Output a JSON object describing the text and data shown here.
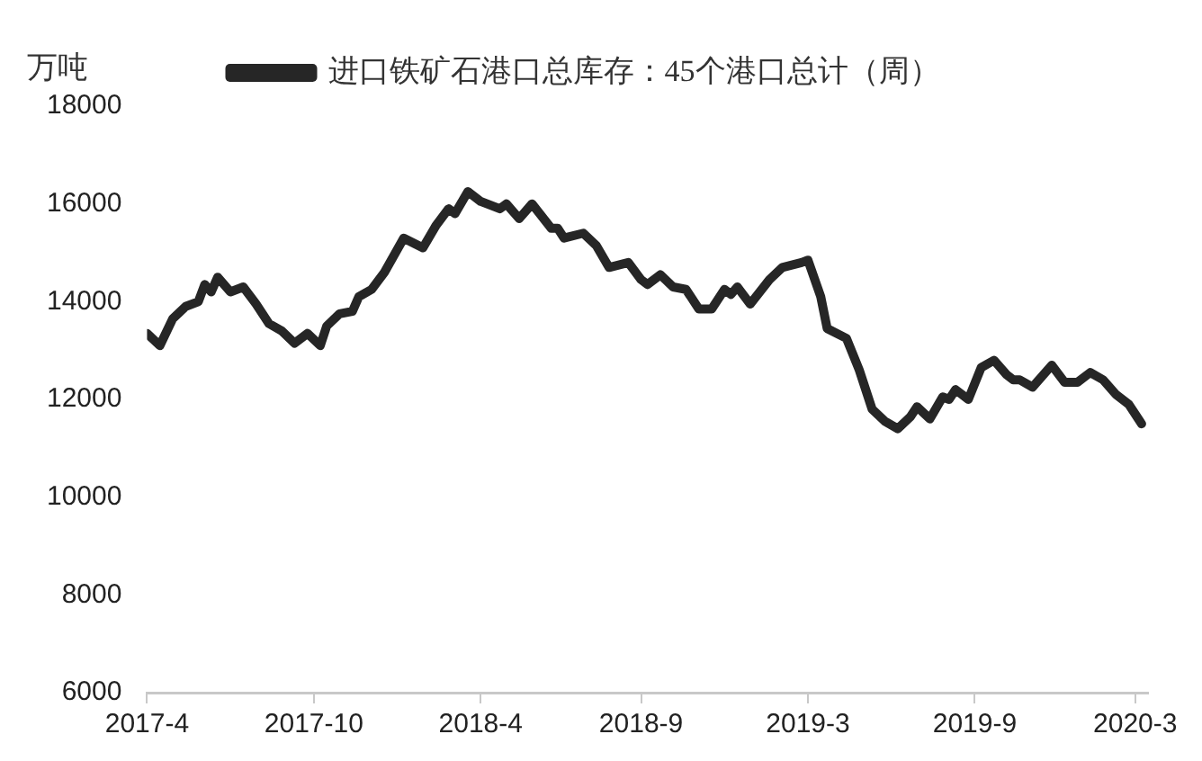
{
  "chart_data": {
    "type": "line",
    "ylabel": "万吨",
    "legend": "top",
    "marker": "none",
    "line_style": "solid",
    "grid": false,
    "x": [
      "2017-04-07",
      "2017-04-21",
      "2017-05-05",
      "2017-05-19",
      "2017-06-02",
      "2017-06-09",
      "2017-06-16",
      "2017-06-23",
      "2017-07-07",
      "2017-07-21",
      "2017-08-04",
      "2017-08-18",
      "2017-09-01",
      "2017-09-15",
      "2017-09-29",
      "2017-10-13",
      "2017-10-20",
      "2017-11-03",
      "2017-11-17",
      "2017-11-24",
      "2017-12-08",
      "2017-12-22",
      "2018-01-12",
      "2018-02-02",
      "2018-02-16",
      "2018-03-02",
      "2018-03-09",
      "2018-03-23",
      "2018-04-06",
      "2018-04-27",
      "2018-05-04",
      "2018-05-18",
      "2018-06-01",
      "2018-06-22",
      "2018-06-29",
      "2018-07-06",
      "2018-07-27",
      "2018-08-10",
      "2018-08-24",
      "2018-09-14",
      "2018-09-28",
      "2018-10-05",
      "2018-10-19",
      "2018-11-02",
      "2018-11-16",
      "2018-11-30",
      "2018-12-14",
      "2018-12-28",
      "2019-01-04",
      "2019-01-11",
      "2019-01-25",
      "2019-02-15",
      "2019-03-01",
      "2019-03-22",
      "2019-03-29",
      "2019-04-12",
      "2019-04-19",
      "2019-05-10",
      "2019-05-24",
      "2019-06-07",
      "2019-06-21",
      "2019-07-05",
      "2019-07-19",
      "2019-07-26",
      "2019-08-09",
      "2019-08-23",
      "2019-08-30",
      "2019-09-06",
      "2019-09-20",
      "2019-10-04",
      "2019-10-18",
      "2019-11-01",
      "2019-11-08",
      "2019-11-15",
      "2019-11-29",
      "2019-12-20",
      "2020-01-03",
      "2020-01-17",
      "2020-01-31",
      "2020-02-14",
      "2020-02-28",
      "2020-03-13",
      "2020-03-27"
    ],
    "series": [
      {
        "name": "进口铁矿石港口总库存：45个港口总计（周）",
        "color": "#262626",
        "values": [
          13350,
          13100,
          13650,
          13900,
          14000,
          14350,
          14200,
          14500,
          14200,
          14300,
          13950,
          13550,
          13400,
          13150,
          13350,
          13100,
          13500,
          13750,
          13800,
          14100,
          14250,
          14600,
          15300,
          15100,
          15550,
          15900,
          15800,
          16250,
          16050,
          15900,
          16000,
          15700,
          16000,
          15500,
          15500,
          15300,
          15400,
          15150,
          14700,
          14800,
          14450,
          14350,
          14550,
          14300,
          14250,
          13850,
          13850,
          14250,
          14150,
          14300,
          13950,
          14450,
          14700,
          14800,
          14850,
          14100,
          13450,
          13250,
          12600,
          11800,
          11550,
          11400,
          11650,
          11850,
          11600,
          12050,
          12000,
          12200,
          12000,
          12650,
          12800,
          12500,
          12400,
          12400,
          12250,
          12700,
          12350,
          12350,
          12550,
          12400,
          12100,
          11900,
          11500
        ]
      }
    ],
    "ylim": [
      6000,
      18000
    ],
    "yticks": [
      6000,
      8000,
      10000,
      12000,
      14000,
      16000,
      18000
    ],
    "xlim": [
      "2017-04-07",
      "2020-04-03"
    ],
    "xticks": [
      {
        "value": "2017-04-07",
        "label": "2017-4"
      },
      {
        "value": "2017-10-06",
        "label": "2017-10"
      },
      {
        "value": "2018-04-06",
        "label": "2018-4"
      },
      {
        "value": "2018-09-28",
        "label": "2018-9"
      },
      {
        "value": "2019-03-29",
        "label": "2019-3"
      },
      {
        "value": "2019-09-27",
        "label": "2019-9"
      },
      {
        "value": "2020-03-20",
        "label": "2020-3"
      }
    ]
  }
}
